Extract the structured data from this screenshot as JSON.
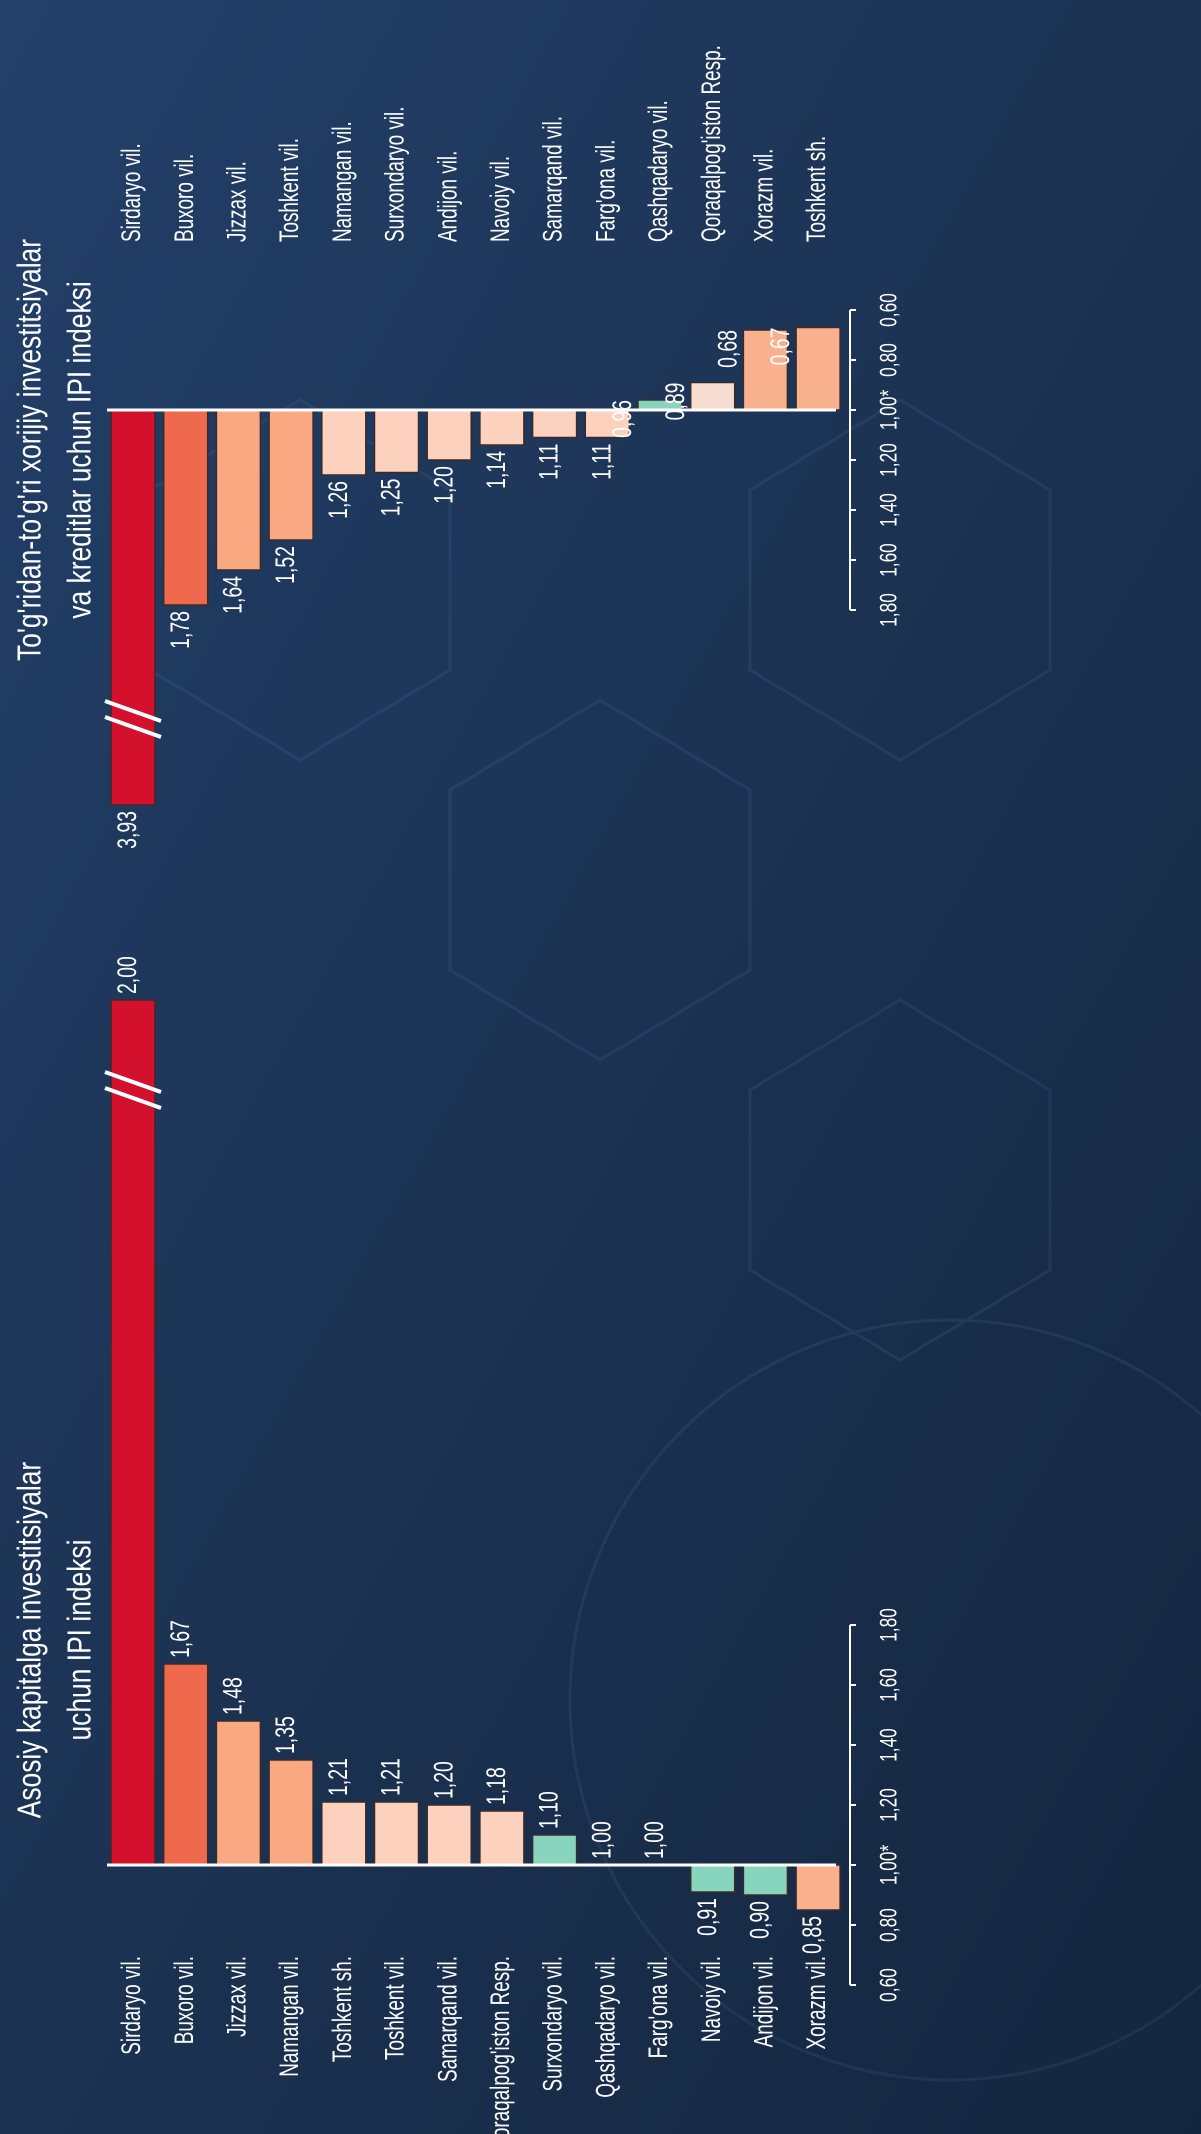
{
  "chart_data": [
    {
      "type": "bar",
      "orientation": "horizontal",
      "title": [
        "Asosiy kapitalga investitsiyalar",
        "uchun IPI indeksi"
      ],
      "categories": [
        "Sirdaryo vil.",
        "Buxoro vil.",
        "Jizzax vil.",
        "Namangan vil.",
        "Toshkent sh.",
        "Toshkent vil.",
        "Samarqand vil.",
        "Qoraqalpog'iston Resp.",
        "Surxondaryo vil.",
        "Qashqadaryo vil.",
        "Farg'ona vil.",
        "Navoiy vil.",
        "Andijon vil.",
        "Xorazm vil."
      ],
      "values": [
        2.0,
        1.67,
        1.48,
        1.35,
        1.21,
        1.21,
        1.2,
        1.18,
        1.1,
        1.0,
        1.0,
        0.91,
        0.9,
        0.85
      ],
      "value_labels": [
        "2,00",
        "1,67",
        "1,48",
        "1,35",
        "1,21",
        "1,21",
        "1,20",
        "1,18",
        "1,10",
        "1,00",
        "1,00",
        "0,91",
        "0,90",
        "0,85"
      ],
      "colors": [
        "#d4112c",
        "#ef6a4c",
        "#f9a882",
        "#f9a882",
        "#fcd2bf",
        "#fcd2bf",
        "#fcd2bf",
        "#fcd2bf",
        "#88d5bd",
        "#159c72",
        "#159c72",
        "#88d5bd",
        "#88d5bd",
        "#f9b08c"
      ],
      "xlim": [
        0.6,
        1.8
      ],
      "xticks": [
        {
          "value": 0.6,
          "label": "0,60"
        },
        {
          "value": 0.8,
          "label": "0,80"
        },
        {
          "value": 1.0,
          "label": "1,00*"
        },
        {
          "value": 1.2,
          "label": "1,20"
        },
        {
          "value": 1.4,
          "label": "1,40"
        },
        {
          "value": 1.6,
          "label": "1,60"
        },
        {
          "value": 1.8,
          "label": "1,80"
        }
      ],
      "axis_break": true
    },
    {
      "type": "bar",
      "orientation": "horizontal",
      "title": [
        "To'g'ridan-to'g'ri xorijiy investitsiyalar",
        "va kreditlar uchun IPI indeksi"
      ],
      "categories": [
        "Sirdaryo vil.",
        "Buxoro vil.",
        "Jizzax vil.",
        "Toshkent vil.",
        "Namangan vil.",
        "Surxondaryo vil.",
        "Andijon vil.",
        "Navoiy vil.",
        "Samarqand vil.",
        "Farg'ona vil.",
        "Qashqadaryo vil.",
        "Qoraqalpog'iston Resp.",
        "Xorazm vil.",
        "Toshkent sh."
      ],
      "values": [
        3.93,
        1.78,
        1.64,
        1.52,
        1.26,
        1.25,
        1.2,
        1.14,
        1.11,
        1.11,
        0.96,
        0.89,
        0.68,
        0.67
      ],
      "value_labels": [
        "3,93",
        "1,78",
        "1,64",
        "1,52",
        "1,26",
        "1,25",
        "1,20",
        "1,14",
        "1,11",
        "1,11",
        "0,96",
        "0,89",
        "0,68",
        "0,67"
      ],
      "colors": [
        "#d4112c",
        "#ef6a4c",
        "#f9a882",
        "#f9a882",
        "#fcd2bf",
        "#fcd2bf",
        "#fcd2bf",
        "#fcd2bf",
        "#fcd2bf",
        "#fcd2bf",
        "#88d5bd",
        "#f6ddd0",
        "#f9b08c",
        "#f9b08c"
      ],
      "xlim": [
        1.8,
        0.6
      ],
      "xticks": [
        {
          "value": 1.8,
          "label": "1,80"
        },
        {
          "value": 1.6,
          "label": "1,60"
        },
        {
          "value": 1.4,
          "label": "1,40"
        },
        {
          "value": 1.2,
          "label": "1,20"
        },
        {
          "value": 1.0,
          "label": "1,00*"
        },
        {
          "value": 0.8,
          "label": "0,80"
        },
        {
          "value": 0.6,
          "label": "0,60"
        }
      ],
      "axis_break": true
    }
  ]
}
